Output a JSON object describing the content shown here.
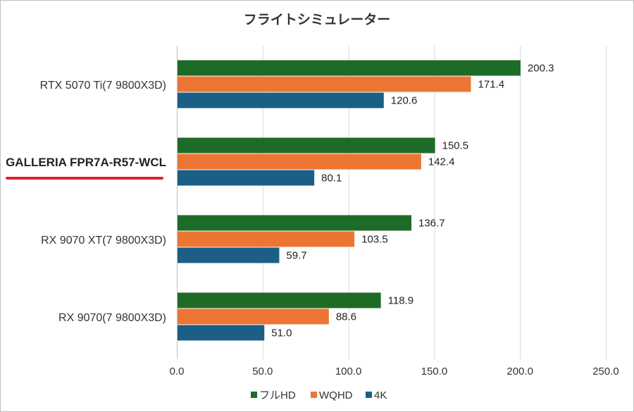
{
  "chart_data": {
    "type": "bar",
    "orientation": "horizontal",
    "title": "フライトシミュレーター",
    "categories": [
      "RTX 5070 Ti(7 9800X3D)",
      "GALLERIA FPR7A-R57-WCL",
      "RX 9070 XT(7 9800X3D)",
      "RX 9070(7 9800X3D)"
    ],
    "highlighted_category": "GALLERIA FPR7A-R57-WCL",
    "series": [
      {
        "name": "フルHD",
        "color": "#1e6b27",
        "values": [
          200.3,
          150.5,
          136.7,
          118.9
        ]
      },
      {
        "name": "WQHD",
        "color": "#ed7534",
        "values": [
          171.4,
          142.4,
          103.5,
          88.6
        ]
      },
      {
        "name": "4K",
        "color": "#1b5f86",
        "values": [
          120.6,
          80.1,
          59.7,
          51.0
        ]
      }
    ],
    "xlim": [
      0,
      250
    ],
    "xticks": [
      "0.0",
      "50.0",
      "100.0",
      "150.0",
      "200.0",
      "250.0"
    ],
    "grid": true,
    "legend_position": "bottom",
    "highlight_color": "#e0202e"
  }
}
